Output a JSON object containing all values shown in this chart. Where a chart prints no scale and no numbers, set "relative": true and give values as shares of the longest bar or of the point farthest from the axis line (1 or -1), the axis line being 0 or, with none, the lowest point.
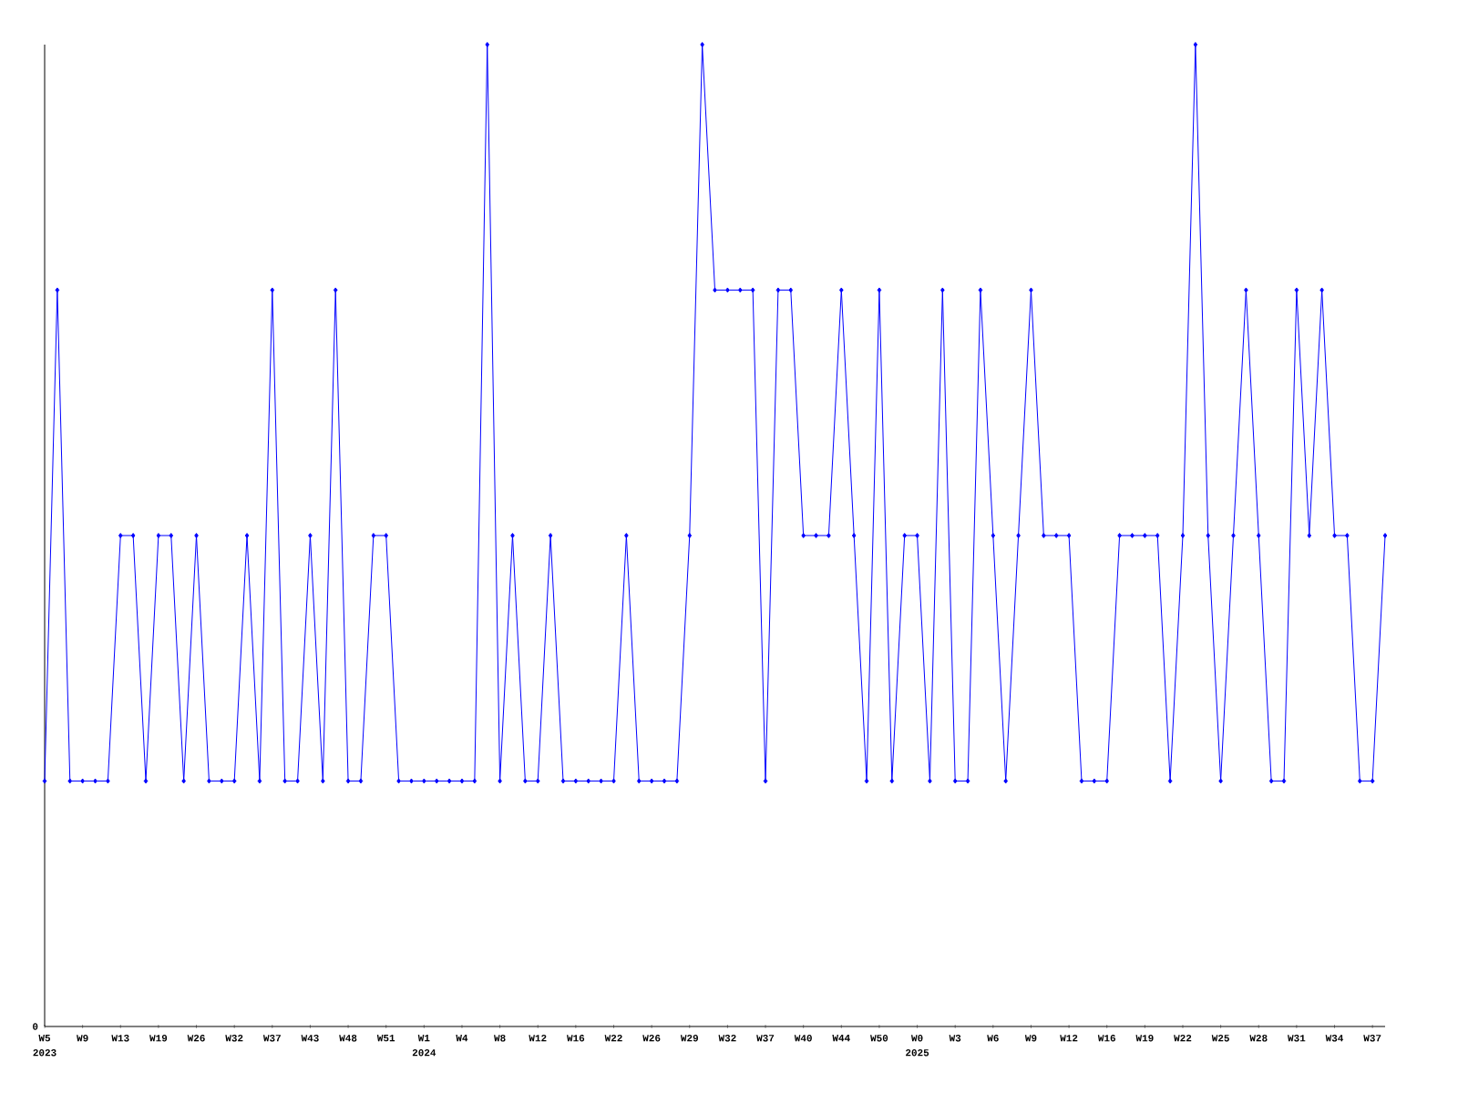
{
  "chart_data": {
    "type": "line",
    "relative": true,
    "color": "#0000ff",
    "marker": "diamond",
    "line_style": "solid",
    "categories": [
      "W5",
      null,
      null,
      "W9",
      null,
      null,
      "W13",
      null,
      null,
      "W19",
      null,
      null,
      "W26",
      null,
      null,
      "W32",
      null,
      null,
      "W37",
      null,
      null,
      "W43",
      null,
      null,
      "W48",
      null,
      null,
      "W51",
      null,
      null,
      "W1",
      null,
      null,
      "W4",
      null,
      null,
      "W8",
      null,
      null,
      "W12",
      null,
      null,
      "W16",
      null,
      null,
      "W22",
      null,
      null,
      "W26",
      null,
      null,
      "W29",
      null,
      null,
      "W32",
      null,
      null,
      "W37",
      null,
      null,
      "W40",
      null,
      null,
      "W44",
      null,
      null,
      "W50",
      null,
      null,
      "W0",
      null,
      null,
      "W3",
      null,
      null,
      "W6",
      null,
      null,
      "W9",
      null,
      null,
      "W12",
      null,
      null,
      "W16",
      null,
      null,
      "W19",
      null,
      null,
      "W22",
      null,
      null,
      "W25",
      null,
      null,
      "W28",
      null,
      null,
      "W31",
      null,
      null,
      "W34",
      null,
      null,
      "W37",
      null
    ],
    "values": [
      0.25,
      0.75,
      0.25,
      0.25,
      0.25,
      0.25,
      0.5,
      0.5,
      0.25,
      0.5,
      0.5,
      0.25,
      0.5,
      0.25,
      0.25,
      0.25,
      0.5,
      0.25,
      0.75,
      0.25,
      0.25,
      0.5,
      0.25,
      0.75,
      0.25,
      0.25,
      0.5,
      0.5,
      0.25,
      0.25,
      0.25,
      0.25,
      0.25,
      0.25,
      0.25,
      1,
      0.25,
      0.5,
      0.25,
      0.25,
      0.5,
      0.25,
      0.25,
      0.25,
      0.25,
      0.25,
      0.5,
      0.25,
      0.25,
      0.25,
      0.25,
      0.5,
      1,
      0.75,
      0.75,
      0.75,
      0.75,
      0.25,
      0.75,
      0.75,
      0.5,
      0.5,
      0.5,
      0.75,
      0.5,
      0.25,
      0.75,
      0.25,
      0.5,
      0.5,
      0.25,
      0.75,
      0.25,
      0.25,
      0.75,
      0.5,
      0.25,
      0.5,
      0.75,
      0.5,
      0.5,
      0.5,
      0.25,
      0.25,
      0.25,
      0.5,
      0.5,
      0.5,
      0.5,
      0.25,
      0.5,
      1,
      0.5,
      0.25,
      0.5,
      0.75,
      0.5,
      0.25,
      0.25,
      0.75,
      0.5,
      0.75,
      0.5,
      0.5,
      0.25,
      0.25,
      0.5
    ],
    "annotations": [
      "0",
      "2023",
      "2024",
      "2025"
    ]
  }
}
